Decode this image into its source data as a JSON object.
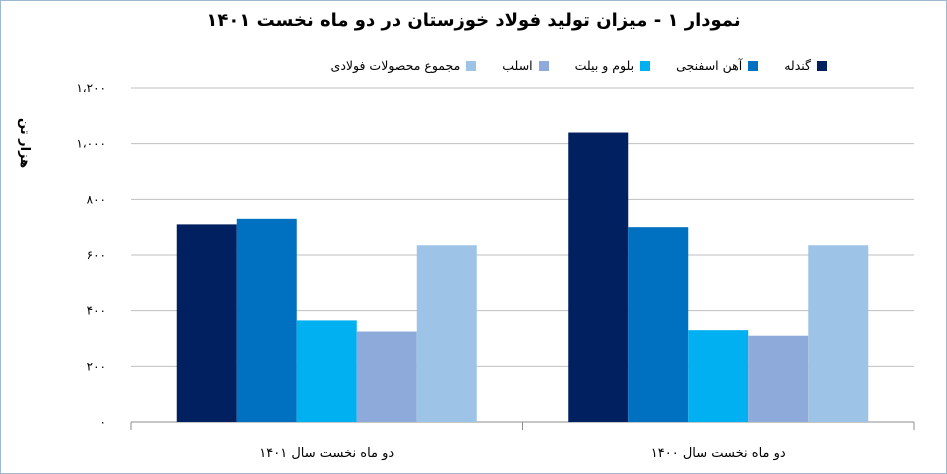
{
  "chart_data": {
    "type": "bar",
    "title": "نمودار ۱ - میزان تولید فولاد خوزستان در دو ماه نخست ۱۴۰۱",
    "ylabel": "هزار تن",
    "xlabel": "",
    "ylim": [
      0,
      1200
    ],
    "yticks": [
      0,
      200,
      400,
      600,
      800,
      1000,
      1200
    ],
    "ytick_labels": [
      "۰",
      "۲۰۰",
      "۴۰۰",
      "۶۰۰",
      "۸۰۰",
      "۱،۰۰۰",
      "۱،۲۰۰"
    ],
    "categories": [
      "دو ماه نخست سال ۱۴۰۱",
      "دو ماه نخست سال ۱۴۰۰"
    ],
    "grid": true,
    "legend_position": "top",
    "series": [
      {
        "name": "گندله",
        "color": "#002060",
        "values": [
          710,
          1040
        ]
      },
      {
        "name": "آهن اسفنجی",
        "color": "#0070c0",
        "values": [
          730,
          700
        ]
      },
      {
        "name": "بلوم و بیلت",
        "color": "#00b0f0",
        "values": [
          365,
          330
        ]
      },
      {
        "name": "اسلب",
        "color": "#8eaadb",
        "values": [
          325,
          310
        ]
      },
      {
        "name": "مجموع محصولات فولادی",
        "color": "#9dc3e6",
        "values": [
          635,
          635
        ]
      }
    ]
  }
}
